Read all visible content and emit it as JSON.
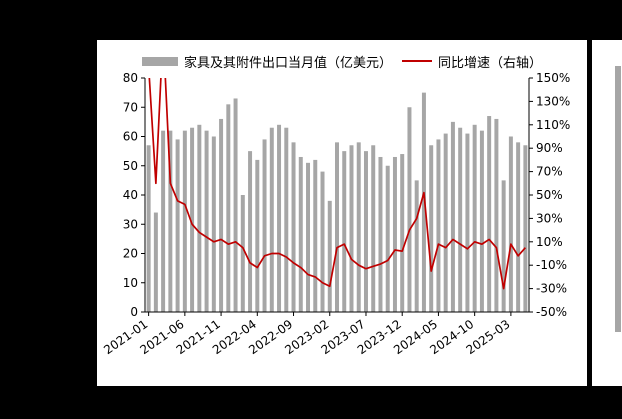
{
  "chart_data": {
    "type": "bar",
    "title": "",
    "legend": [
      {
        "label": "家具及其附件出口当月值（亿美元）",
        "type": "bar",
        "color": "#a6a6a6"
      },
      {
        "label": "同比增速（右轴）",
        "type": "line",
        "color": "#c00000"
      }
    ],
    "x": [
      "2021-01",
      "2021-02",
      "2021-03",
      "2021-04",
      "2021-05",
      "2021-06",
      "2021-07",
      "2021-08",
      "2021-09",
      "2021-10",
      "2021-11",
      "2021-12",
      "2022-01",
      "2022-02",
      "2022-03",
      "2022-04",
      "2022-05",
      "2022-06",
      "2022-07",
      "2022-08",
      "2022-09",
      "2022-10",
      "2022-11",
      "2022-12",
      "2023-01",
      "2023-02",
      "2023-03",
      "2023-04",
      "2023-05",
      "2023-06",
      "2023-07",
      "2023-08",
      "2023-09",
      "2023-10",
      "2023-11",
      "2023-12",
      "2024-01",
      "2024-02",
      "2024-03",
      "2024-04",
      "2024-05",
      "2024-06",
      "2024-07",
      "2024-08",
      "2024-09",
      "2024-10",
      "2024-11",
      "2024-12",
      "2025-01",
      "2025-02",
      "2025-03",
      "2025-04",
      "2025-05"
    ],
    "series": [
      {
        "name": "家具及其附件出口当月值（亿美元）",
        "type": "bar",
        "axis": "left",
        "color": "#a6a6a6",
        "values": [
          57,
          34,
          62,
          62,
          59,
          62,
          63,
          64,
          62,
          60,
          66,
          71,
          73,
          40,
          55,
          52,
          59,
          63,
          64,
          63,
          58,
          53,
          51,
          52,
          48,
          38,
          58,
          55,
          57,
          58,
          55,
          57,
          53,
          50,
          53,
          54,
          70,
          45,
          75,
          57,
          59,
          61,
          65,
          63,
          61,
          64,
          62,
          67,
          66,
          45,
          60,
          58,
          57
        ]
      },
      {
        "name": "同比增速（右轴）",
        "type": "line",
        "axis": "right",
        "color": "#c00000",
        "values": [
          160,
          60,
          190,
          60,
          45,
          42,
          25,
          18,
          14,
          10,
          12,
          8,
          10,
          5,
          -8,
          -12,
          -2,
          0,
          0,
          -3,
          -8,
          -12,
          -18,
          -20,
          -25,
          -28,
          5,
          8,
          -5,
          -10,
          -13,
          -11,
          -9,
          -6,
          3,
          2,
          20,
          30,
          52,
          -15,
          8,
          5,
          12,
          8,
          4,
          10,
          8,
          12,
          5,
          -30,
          8,
          -2,
          5
        ]
      }
    ],
    "left_axis": {
      "min": 0,
      "max": 80,
      "ticks": [
        80,
        70,
        60,
        50,
        40,
        30,
        20,
        10,
        0
      ]
    },
    "right_axis": {
      "min": -50,
      "max": 150,
      "ticks": [
        "150%",
        "130%",
        "110%",
        "90%",
        "70%",
        "50%",
        "30%",
        "10%",
        "-10%",
        "-30%",
        "-50%"
      ]
    },
    "x_tick_labels": [
      "2021-01",
      "2021-06",
      "2021-11",
      "2022-04",
      "2022-09",
      "2023-02",
      "2023-07",
      "2023-12",
      "2024-05",
      "2024-10",
      "2025-03"
    ],
    "grid": false,
    "legend_position": "top",
    "ylabel": "",
    "xlabel": ""
  },
  "colors": {
    "background": "#000000",
    "panel": "#ffffff",
    "bar": "#a6a6a6",
    "line": "#c00000",
    "axis_text": "#000000"
  }
}
